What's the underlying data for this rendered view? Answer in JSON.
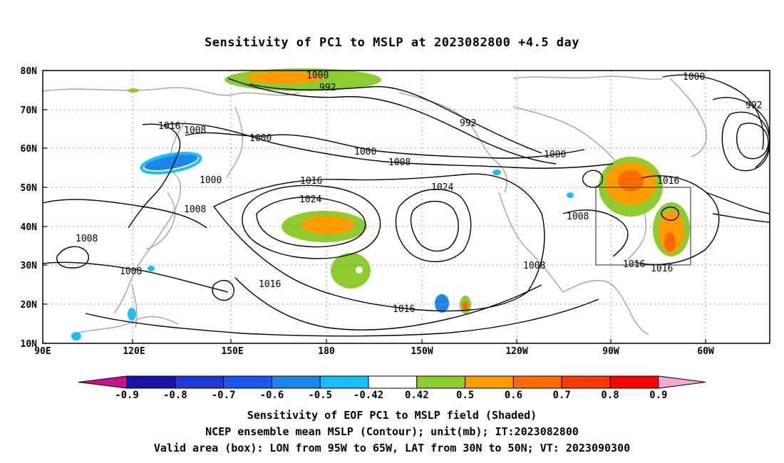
{
  "title": "Sensitivity of PC1 to MSLP at 2023082800 +4.5 day",
  "latitude_labels": [
    "80N",
    "70N",
    "60N",
    "50N",
    "40N",
    "30N",
    "20N",
    "10N"
  ],
  "longitude_labels": [
    "90E",
    "120E",
    "150E",
    "180",
    "150W",
    "120W",
    "90W",
    "60W"
  ],
  "contour_labels": [
    "1000",
    "992",
    "1016",
    "1008",
    "1000",
    "992",
    "1000",
    "1008",
    "1000",
    "1000",
    "1016",
    "1024",
    "1024",
    "1008",
    "1008",
    "1008",
    "1008",
    "1016",
    "1016",
    "1008",
    "1016",
    "1016",
    "1000",
    "992",
    "1016"
  ],
  "colorbar": {
    "tick_labels": [
      "-0.9",
      "-0.8",
      "-0.7",
      "-0.6",
      "-0.5",
      "-0.42",
      "0.42",
      "0.5",
      "0.6",
      "0.7",
      "0.8",
      "0.9"
    ],
    "colors": [
      "#c8138a",
      "#1616a8",
      "#1e3ad8",
      "#1a58f0",
      "#1a86ee",
      "#16c0f4",
      "#ffffff",
      "#8ccc2c",
      "#ff9c00",
      "#ff6a00",
      "#ff3800",
      "#ff0000",
      "#f8a8cc"
    ]
  },
  "valid_box": {
    "lon_min": "95W",
    "lon_max": "65W",
    "lat_min": "30N",
    "lat_max": "50N"
  },
  "captions": [
    "Sensitivity of EOF PC1 to MSLP field (Shaded)",
    "NCEP ensemble mean MSLP (Contour); unit(mb); IT:2023082800",
    "Valid area (box): LON from 95W to 65W, LAT from 30N to 50N; VT: 2023090300"
  ]
}
